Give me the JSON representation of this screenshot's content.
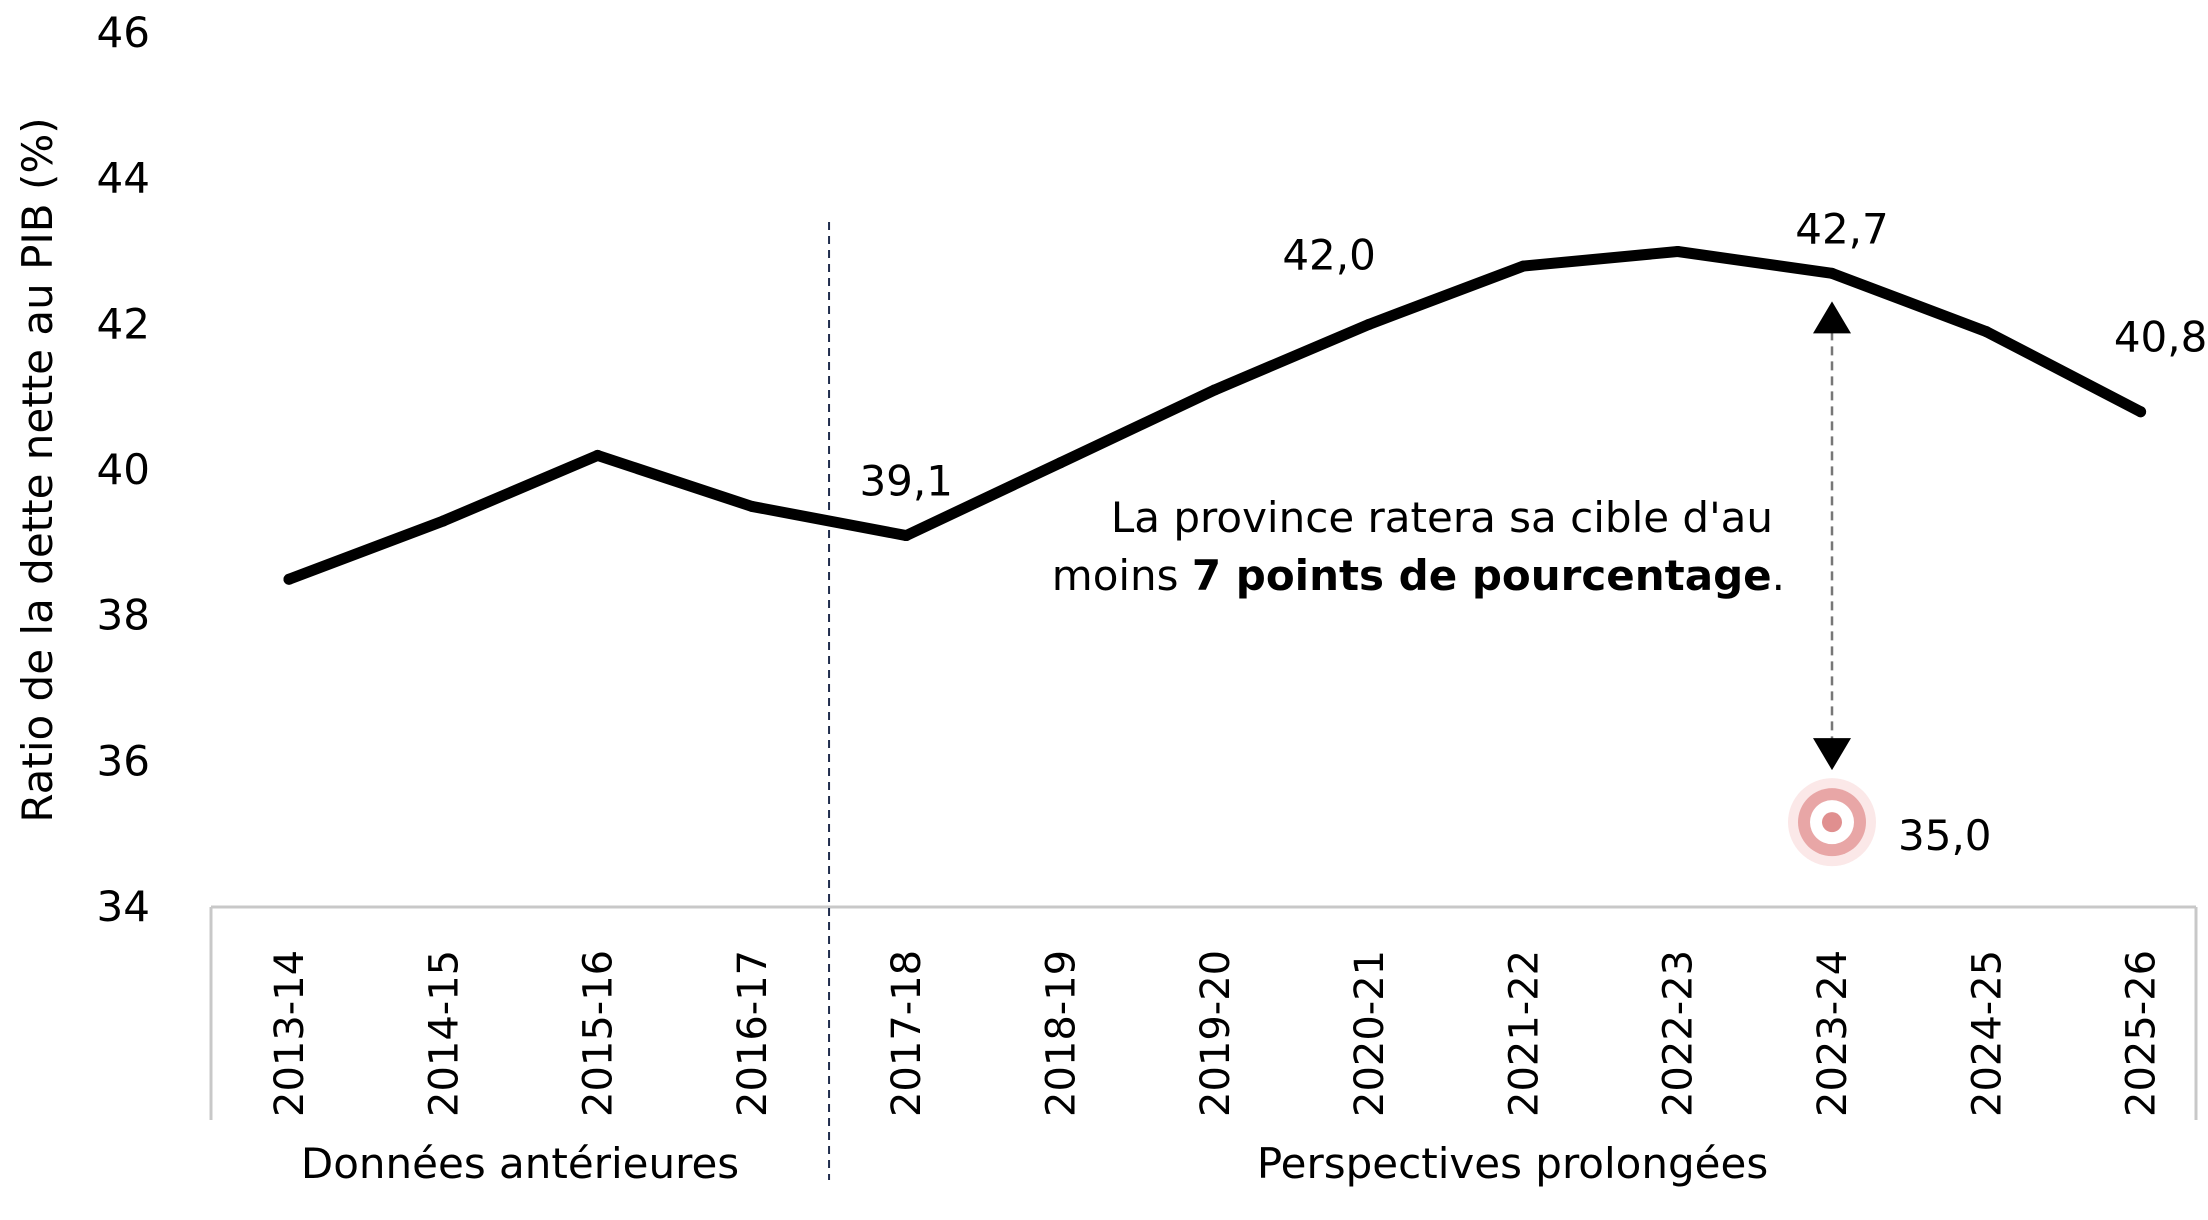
{
  "chart_data": {
    "type": "line",
    "ylabel": "Ratio de la dette nette au PIB (%)",
    "ylim": [
      34,
      46
    ],
    "yticks": [
      34,
      36,
      38,
      40,
      42,
      44,
      46
    ],
    "categories": [
      "2013-14",
      "2014-15",
      "2015-16",
      "2016-17",
      "2017-18",
      "2018-19",
      "2019-20",
      "2020-21",
      "2021-22",
      "2022-23",
      "2023-24",
      "2024-25",
      "2025-26"
    ],
    "series": [
      {
        "values": [
          38.5,
          39.3,
          40.2,
          39.5,
          39.1,
          40.1,
          41.1,
          42.0,
          42.8,
          43.0,
          42.7,
          41.9,
          40.8
        ]
      }
    ],
    "data_labels": [
      {
        "index": 4,
        "text": "39,1"
      },
      {
        "index": 7,
        "text": "42,0"
      },
      {
        "index": 10,
        "text": "42,7"
      },
      {
        "index": 12,
        "text": "40,8"
      }
    ],
    "groups": [
      {
        "label": "Données antérieures",
        "start": 0,
        "end": 3
      },
      {
        "label": "Perspectives prolongées",
        "start": 4,
        "end": 12
      }
    ],
    "target": {
      "index": 10,
      "value": 35.0,
      "label": "35,0",
      "color": "#e8a6a6"
    },
    "annotation": {
      "line1": "La province ratera sa cible d'au",
      "line2_pre": "moins ",
      "line2_bold": "7 points de pourcentage",
      "line2_post": "."
    },
    "colors": {
      "line": "#000000",
      "divider": "#1f2d4d",
      "axis": "#c8c8c8",
      "arrow": "#777777"
    }
  }
}
